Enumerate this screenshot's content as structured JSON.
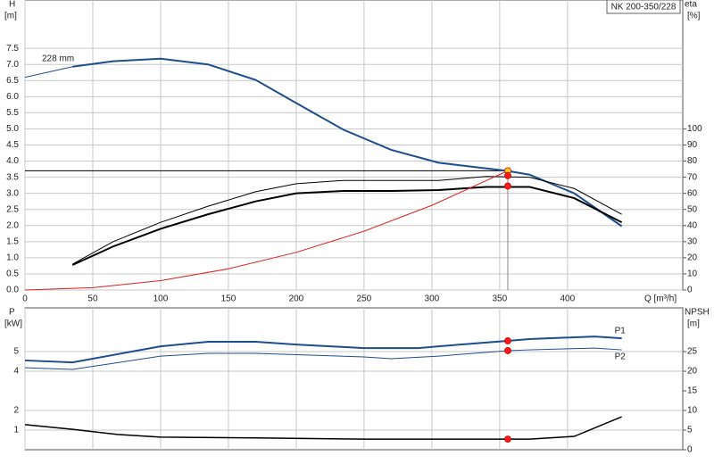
{
  "chart_data": [
    {
      "type": "line",
      "title": "NK 200-350/228",
      "annotation": "228 mm",
      "ylabel": "H",
      "yunit": "[m]",
      "y2label": "eta",
      "y2unit": "[%]",
      "xlabel": "Q [m³/h]",
      "xlim": [
        0,
        485
      ],
      "ylim": [
        0,
        9.0
      ],
      "y2lim": [
        0,
        180
      ],
      "xticks": [
        0,
        50,
        100,
        150,
        200,
        250,
        300,
        350,
        400
      ],
      "show_xtick_labels": true,
      "yticks": [
        {
          "value": 0,
          "label": "0.0"
        },
        {
          "value": 0.5,
          "label": "0.5"
        },
        {
          "value": 1,
          "label": "1.0"
        },
        {
          "value": 1.5,
          "label": "1.5"
        },
        {
          "value": 2,
          "label": "2.0"
        },
        {
          "value": 2.5,
          "label": "2.5"
        },
        {
          "value": 3,
          "label": "3.0"
        },
        {
          "value": 3.5,
          "label": "3.5"
        },
        {
          "value": 4,
          "label": "4.0"
        },
        {
          "value": 4.5,
          "label": "4.5"
        },
        {
          "value": 5,
          "label": "5.0"
        },
        {
          "value": 5.5,
          "label": "5.5"
        },
        {
          "value": 6,
          "label": "6.0"
        },
        {
          "value": 6.5,
          "label": "6.5"
        },
        {
          "value": 7,
          "label": "7.0"
        },
        {
          "value": 7.5,
          "label": "7.5"
        }
      ],
      "y2ticks": [
        0,
        10,
        20,
        30,
        40,
        50,
        60,
        70,
        80,
        90,
        100
      ],
      "grid": true,
      "crosshair": true,
      "series": [
        {
          "color": "#1f4e8c",
          "width": 1,
          "x": [
            0,
            35
          ],
          "values": [
            6.6,
            6.93
          ]
        },
        {
          "color": "#1f4e8c",
          "width": 2,
          "x": [
            35,
            65,
            100,
            135,
            170,
            200,
            235,
            270,
            305,
            355,
            372,
            405,
            440
          ],
          "values": [
            6.93,
            7.1,
            7.18,
            7.0,
            6.52,
            5.8,
            4.97,
            4.35,
            3.95,
            3.7,
            3.58,
            3.0,
            1.98
          ]
        },
        {
          "color": "#000000",
          "width": 1,
          "axis": "y2",
          "x": [
            35,
            65,
            100,
            135,
            170,
            200,
            235,
            270,
            305,
            340,
            372,
            405,
            440
          ],
          "values": [
            16,
            30,
            42,
            52,
            61,
            66,
            68,
            68,
            68,
            70.5,
            70,
            63,
            47
          ]
        },
        {
          "color": "#000000",
          "width": 2,
          "axis": "y2",
          "x": [
            35,
            65,
            100,
            135,
            170,
            200,
            235,
            270,
            305,
            340,
            372,
            405,
            440
          ],
          "values": [
            15.5,
            27,
            38,
            47,
            55,
            60,
            61.5,
            61.5,
            62,
            64,
            64,
            57,
            42
          ]
        },
        {
          "color": "#e02020",
          "width": 1,
          "x": [
            0,
            50,
            100,
            150,
            200,
            250,
            300,
            356
          ],
          "values": [
            0,
            0.073,
            0.292,
            0.657,
            1.168,
            1.825,
            2.627,
            3.7
          ]
        }
      ],
      "markers": [
        {
          "x": 356,
          "y": 3.7,
          "color": "#ffd21f"
        },
        {
          "x": 356,
          "y": 71,
          "color": "#ff1a1a",
          "axis": "y2"
        },
        {
          "x": 356,
          "y": 64.5,
          "color": "#ff1a1a",
          "axis": "y2"
        }
      ]
    },
    {
      "type": "line",
      "ylabel": "P",
      "yunit": "[kW]",
      "y2label": "NPSH",
      "y2unit": "[m]",
      "xlim": [
        0,
        485
      ],
      "ylim": [
        0,
        7.23
      ],
      "y2lim": [
        0,
        36.15
      ],
      "xticks": [
        0,
        50,
        100,
        150,
        200,
        250,
        300,
        350,
        400
      ],
      "show_xtick_labels": false,
      "yticks": [
        1,
        2,
        4,
        5
      ],
      "y2ticks": [
        0,
        5,
        10,
        15,
        20,
        25
      ],
      "grid": true,
      "crosshair": false,
      "series": [
        {
          "name": "P1",
          "label_side": "above",
          "color": "#1f4e8c",
          "width": 2,
          "x": [
            0,
            35,
            100,
            135,
            170,
            200,
            250,
            290,
            305,
            356,
            372,
            420,
            440
          ],
          "values": [
            4.55,
            4.45,
            5.27,
            5.5,
            5.5,
            5.36,
            5.18,
            5.18,
            5.27,
            5.55,
            5.64,
            5.77,
            5.68
          ]
        },
        {
          "name": "P2",
          "label_side": "below",
          "color": "#1f4e8c",
          "width": 1,
          "x": [
            0,
            35,
            100,
            135,
            170,
            250,
            270,
            305,
            356,
            372,
            420,
            440
          ],
          "values": [
            4.18,
            4.09,
            4.77,
            4.91,
            4.91,
            4.73,
            4.64,
            4.77,
            5.05,
            5.09,
            5.18,
            5.09
          ]
        },
        {
          "color": "#000000",
          "width": 1.5,
          "axis": "y2",
          "x": [
            0,
            35,
            68,
            100,
            170,
            250,
            356,
            372,
            405,
            440
          ],
          "values": [
            6.4,
            5.2,
            3.9,
            3.2,
            3.0,
            2.7,
            2.7,
            2.7,
            3.4,
            8.4
          ]
        }
      ],
      "markers": [
        {
          "x": 356,
          "y": 5.55,
          "color": "#ff1a1a"
        },
        {
          "x": 356,
          "y": 5.05,
          "color": "#ff1a1a"
        },
        {
          "x": 356,
          "y": 2.7,
          "color": "#ff1a1a",
          "axis": "y2"
        }
      ]
    }
  ]
}
